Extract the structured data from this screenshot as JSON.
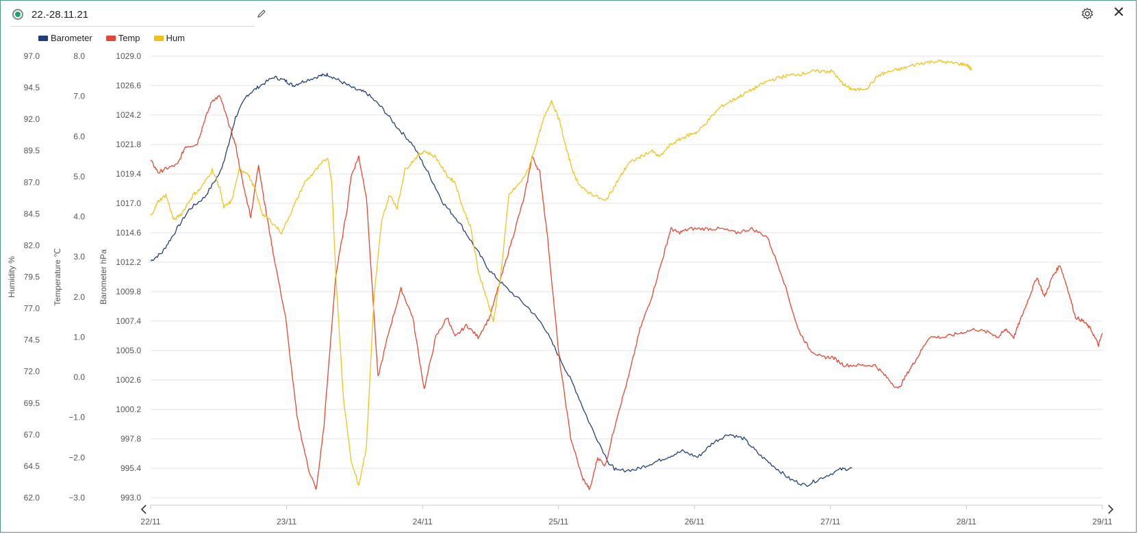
{
  "header": {
    "title": "22.-28.11.21",
    "icons": [
      "status-indicator",
      "pencil-icon",
      "gear-icon",
      "close-icon"
    ],
    "close_glyph": "✕"
  },
  "chart_data": {
    "type": "line",
    "title": "22.-28.11.21",
    "grid": true,
    "legend": {
      "placement": "top-left",
      "entries": [
        "Barometer",
        "Temp",
        "Hum"
      ]
    },
    "x": {
      "type": "date",
      "range": [
        "2021-11-22",
        "2021-11-29"
      ],
      "ticks": [
        "22/11",
        "23/11",
        "24/11",
        "25/11",
        "26/11",
        "27/11",
        "28/11",
        "29/11"
      ]
    },
    "axes": {
      "humidity": {
        "label": "Humidity %",
        "range": [
          62.0,
          97.0
        ],
        "ticks": [
          "97.0",
          "94.5",
          "92.0",
          "89.5",
          "87.0",
          "84.5",
          "82.0",
          "79.5",
          "77.0",
          "74.5",
          "72.0",
          "69.5",
          "67.0",
          "64.5",
          "62.0"
        ]
      },
      "temperature": {
        "label": "Temperature ℃",
        "range": [
          -3.0,
          8.0
        ],
        "ticks": [
          "8.0",
          "7.0",
          "6.0",
          "5.0",
          "4.0",
          "3.0",
          "2.0",
          "1.0",
          "0.0",
          "−1.0",
          "−2.0",
          "−3.0"
        ]
      },
      "barometer": {
        "label": "Barometer hPa",
        "range": [
          993.0,
          1029.0
        ],
        "ticks": [
          "1029.0",
          "1026.6",
          "1024.2",
          "1021.8",
          "1019.4",
          "1017.0",
          "1014.6",
          "1012.2",
          "1009.8",
          "1007.4",
          "1005.0",
          "1002.6",
          "1000.2",
          "997.8",
          "995.4",
          "993.0"
        ]
      }
    },
    "series": [
      {
        "name": "Barometer",
        "axis": "barometer",
        "color": "#1f3d7a",
        "points": [
          [
            0,
            1012.3
          ],
          [
            0.15,
            1013.0
          ],
          [
            0.3,
            1014.5
          ],
          [
            0.5,
            1016.5
          ],
          [
            0.7,
            1017.5
          ],
          [
            0.9,
            1019.5
          ],
          [
            1.0,
            1021.5
          ],
          [
            1.1,
            1024.0
          ],
          [
            1.25,
            1025.8
          ],
          [
            1.4,
            1026.5
          ],
          [
            1.6,
            1027.3
          ],
          [
            1.75,
            1027.0
          ],
          [
            1.85,
            1026.6
          ],
          [
            2.0,
            1027.0
          ],
          [
            2.2,
            1027.4
          ],
          [
            2.3,
            1027.5
          ],
          [
            2.45,
            1027.0
          ],
          [
            2.65,
            1026.3
          ],
          [
            2.8,
            1026.0
          ],
          [
            3.0,
            1024.8
          ],
          [
            3.2,
            1023.2
          ],
          [
            3.4,
            1021.8
          ],
          [
            3.6,
            1019.5
          ],
          [
            3.8,
            1017.0
          ],
          [
            4.0,
            1015.5
          ],
          [
            4.2,
            1013.5
          ],
          [
            4.4,
            1011.5
          ],
          [
            4.6,
            1010.2
          ],
          [
            4.9,
            1008.5
          ],
          [
            5.1,
            1007.0
          ],
          [
            5.3,
            1004.5
          ],
          [
            5.5,
            1002.0
          ],
          [
            5.7,
            999.0
          ],
          [
            5.95,
            995.8
          ],
          [
            6.05,
            995.2
          ],
          [
            6.3,
            995.3
          ],
          [
            6.5,
            995.8
          ],
          [
            6.7,
            996.3
          ],
          [
            6.9,
            996.8
          ],
          [
            7.1,
            996.3
          ],
          [
            7.3,
            997.5
          ],
          [
            7.5,
            998.2
          ],
          [
            7.7,
            997.8
          ],
          [
            7.9,
            996.5
          ],
          [
            8.1,
            995.5
          ],
          [
            8.3,
            994.5
          ],
          [
            8.5,
            994.0
          ],
          [
            8.7,
            994.6
          ],
          [
            8.95,
            995.3
          ],
          [
            9.1,
            995.4
          ]
        ]
      },
      {
        "name": "Temp",
        "axis": "temperature",
        "color": "#e84530",
        "points": [
          [
            0,
            5.4
          ],
          [
            0.1,
            5.1
          ],
          [
            0.2,
            5.2
          ],
          [
            0.35,
            5.3
          ],
          [
            0.45,
            5.75
          ],
          [
            0.6,
            5.8
          ],
          [
            0.7,
            6.4
          ],
          [
            0.8,
            6.9
          ],
          [
            0.9,
            7.0
          ],
          [
            1.0,
            6.4
          ],
          [
            1.1,
            5.8
          ],
          [
            1.2,
            4.8
          ],
          [
            1.3,
            4.0
          ],
          [
            1.4,
            5.3
          ],
          [
            1.5,
            4.1
          ],
          [
            1.6,
            3.0
          ],
          [
            1.75,
            1.5
          ],
          [
            1.9,
            -1.0
          ],
          [
            2.05,
            -2.3
          ],
          [
            2.15,
            -2.8
          ],
          [
            2.25,
            -1.2
          ],
          [
            2.4,
            2.5
          ],
          [
            2.55,
            4.2
          ],
          [
            2.6,
            5.0
          ],
          [
            2.7,
            5.5
          ],
          [
            2.8,
            4.5
          ],
          [
            2.95,
            0.0
          ],
          [
            3.1,
            1.2
          ],
          [
            3.25,
            2.2
          ],
          [
            3.4,
            1.5
          ],
          [
            3.55,
            -0.3
          ],
          [
            3.7,
            1.0
          ],
          [
            3.85,
            1.5
          ],
          [
            3.95,
            1.0
          ],
          [
            4.1,
            1.3
          ],
          [
            4.25,
            1.0
          ],
          [
            4.4,
            1.5
          ],
          [
            4.55,
            2.5
          ],
          [
            4.7,
            3.5
          ],
          [
            4.85,
            4.5
          ],
          [
            4.95,
            5.5
          ],
          [
            5.05,
            5.1
          ],
          [
            5.15,
            3.5
          ],
          [
            5.3,
            0.5
          ],
          [
            5.45,
            -1.5
          ],
          [
            5.6,
            -2.5
          ],
          [
            5.7,
            -2.8
          ],
          [
            5.8,
            -2.0
          ],
          [
            5.9,
            -2.2
          ],
          [
            6.05,
            -1.0
          ],
          [
            6.2,
            0.0
          ],
          [
            6.35,
            1.2
          ],
          [
            6.5,
            2.0
          ],
          [
            6.65,
            3.0
          ],
          [
            6.75,
            3.7
          ],
          [
            6.85,
            3.6
          ],
          [
            7.0,
            3.7
          ],
          [
            7.2,
            3.7
          ],
          [
            7.4,
            3.7
          ],
          [
            7.6,
            3.6
          ],
          [
            7.8,
            3.7
          ],
          [
            8.0,
            3.5
          ],
          [
            8.2,
            2.5
          ],
          [
            8.4,
            1.2
          ],
          [
            8.55,
            0.7
          ],
          [
            8.7,
            0.5
          ],
          [
            8.85,
            0.5
          ],
          [
            9.0,
            0.3
          ],
          [
            9.2,
            0.3
          ],
          [
            9.4,
            0.3
          ],
          [
            9.55,
            0.0
          ],
          [
            9.7,
            -0.3
          ],
          [
            9.85,
            0.2
          ],
          [
            9.95,
            0.5
          ],
          [
            10.1,
            1.0
          ],
          [
            10.3,
            1.0
          ],
          [
            10.5,
            1.1
          ],
          [
            10.7,
            1.2
          ],
          [
            10.9,
            1.1
          ],
          [
            11.0,
            1.0
          ],
          [
            11.1,
            1.2
          ],
          [
            11.2,
            1.0
          ],
          [
            11.3,
            1.5
          ],
          [
            11.4,
            2.0
          ],
          [
            11.5,
            2.5
          ],
          [
            11.6,
            2.0
          ],
          [
            11.7,
            2.5
          ],
          [
            11.8,
            2.8
          ],
          [
            11.9,
            2.2
          ],
          [
            12.0,
            1.5
          ],
          [
            12.1,
            1.4
          ],
          [
            12.2,
            1.2
          ],
          [
            12.3,
            0.8
          ],
          [
            12.35,
            1.1
          ]
        ]
      },
      {
        "name": "Hum",
        "axis": "humidity",
        "color": "#efc31b",
        "points": [
          [
            0,
            84.3
          ],
          [
            0.1,
            85.5
          ],
          [
            0.2,
            86.0
          ],
          [
            0.3,
            84.0
          ],
          [
            0.4,
            84.5
          ],
          [
            0.55,
            86.0
          ],
          [
            0.65,
            86.5
          ],
          [
            0.8,
            88.0
          ],
          [
            0.9,
            86.5
          ],
          [
            0.95,
            85.0
          ],
          [
            1.05,
            85.5
          ],
          [
            1.15,
            88.0
          ],
          [
            1.25,
            87.8
          ],
          [
            1.35,
            86.5
          ],
          [
            1.45,
            84.5
          ],
          [
            1.55,
            84.0
          ],
          [
            1.7,
            83.0
          ],
          [
            1.85,
            85.0
          ],
          [
            2.0,
            87.0
          ],
          [
            2.15,
            88.0
          ],
          [
            2.3,
            89.0
          ],
          [
            2.35,
            87.0
          ],
          [
            2.4,
            80.0
          ],
          [
            2.5,
            70.0
          ],
          [
            2.6,
            65.0
          ],
          [
            2.7,
            63.0
          ],
          [
            2.8,
            66.0
          ],
          [
            2.9,
            78.0
          ],
          [
            3.0,
            84.0
          ],
          [
            3.1,
            86.0
          ],
          [
            3.2,
            85.0
          ],
          [
            3.3,
            88.0
          ],
          [
            3.45,
            89.0
          ],
          [
            3.55,
            89.5
          ],
          [
            3.7,
            89.0
          ],
          [
            3.85,
            87.5
          ],
          [
            3.95,
            87.0
          ],
          [
            4.05,
            85.0
          ],
          [
            4.15,
            83.5
          ],
          [
            4.25,
            80.0
          ],
          [
            4.35,
            78.0
          ],
          [
            4.45,
            76.0
          ],
          [
            4.55,
            80.0
          ],
          [
            4.65,
            86.0
          ],
          [
            4.8,
            87.0
          ],
          [
            4.9,
            88.0
          ],
          [
            5.0,
            90.0
          ],
          [
            5.1,
            92.0
          ],
          [
            5.2,
            93.5
          ],
          [
            5.3,
            92.0
          ],
          [
            5.4,
            89.5
          ],
          [
            5.5,
            87.5
          ],
          [
            5.6,
            86.5
          ],
          [
            5.75,
            86.0
          ],
          [
            5.9,
            85.5
          ],
          [
            6.0,
            86.5
          ],
          [
            6.1,
            87.5
          ],
          [
            6.2,
            88.5
          ],
          [
            6.35,
            89.0
          ],
          [
            6.5,
            89.5
          ],
          [
            6.6,
            89.0
          ],
          [
            6.75,
            90.0
          ],
          [
            6.9,
            90.5
          ],
          [
            7.0,
            90.8
          ],
          [
            7.1,
            91.0
          ],
          [
            7.25,
            92.0
          ],
          [
            7.4,
            93.0
          ],
          [
            7.55,
            93.5
          ],
          [
            7.7,
            94.0
          ],
          [
            7.85,
            94.5
          ],
          [
            8.0,
            95.0
          ],
          [
            8.15,
            95.3
          ],
          [
            8.3,
            95.5
          ],
          [
            8.45,
            95.6
          ],
          [
            8.6,
            95.8
          ],
          [
            8.75,
            95.8
          ],
          [
            8.85,
            95.8
          ],
          [
            8.95,
            95.0
          ],
          [
            9.05,
            94.5
          ],
          [
            9.15,
            94.3
          ],
          [
            9.3,
            94.5
          ],
          [
            9.45,
            95.5
          ],
          [
            9.6,
            95.8
          ],
          [
            9.75,
            96.0
          ],
          [
            9.9,
            96.3
          ],
          [
            10.05,
            96.5
          ],
          [
            10.2,
            96.6
          ],
          [
            10.35,
            96.5
          ],
          [
            10.5,
            96.4
          ],
          [
            10.6,
            96.3
          ],
          [
            10.65,
            95.9
          ]
        ]
      }
    ]
  }
}
